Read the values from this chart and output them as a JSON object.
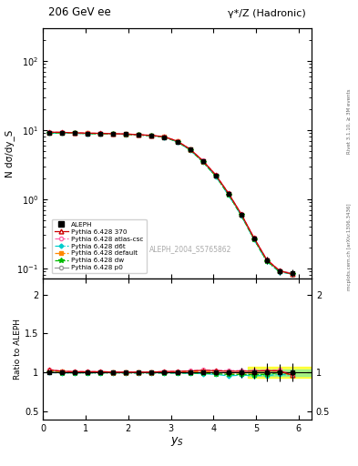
{
  "title_left": "206 GeV ee",
  "title_right": "γ*/Z (Hadronic)",
  "ylabel_main": "N dσ/dy_S",
  "ylabel_ratio": "Ratio to ALEPH",
  "xlabel": "y_S",
  "watermark": "ALEPH_2004_S5765862",
  "right_label_top": "Rivet 3.1.10, ≥ 3M events",
  "right_label_bottom": "mcplots.cern.ch [arXiv:1306.3436]",
  "xlim": [
    0,
    6.3
  ],
  "ylim_main": [
    0.07,
    300
  ],
  "ylim_ratio": [
    0.4,
    2.2
  ],
  "yticks_ratio": [
    0.5,
    1.0,
    1.5,
    2.0
  ],
  "x_data": [
    0.15,
    0.45,
    0.75,
    1.05,
    1.35,
    1.65,
    1.95,
    2.25,
    2.55,
    2.85,
    3.15,
    3.45,
    3.75,
    4.05,
    4.35,
    4.65,
    4.95,
    5.25,
    5.55,
    5.85
  ],
  "aleph_y": [
    9.0,
    9.1,
    9.0,
    8.9,
    8.85,
    8.8,
    8.7,
    8.5,
    8.3,
    7.9,
    6.8,
    5.2,
    3.5,
    2.2,
    1.2,
    0.6,
    0.27,
    0.13,
    0.09,
    0.085
  ],
  "aleph_yerr": [
    0.15,
    0.12,
    0.12,
    0.12,
    0.11,
    0.11,
    0.11,
    0.1,
    0.1,
    0.1,
    0.09,
    0.08,
    0.07,
    0.06,
    0.05,
    0.04,
    0.02,
    0.015,
    0.01,
    0.01
  ],
  "py370_y": [
    9.3,
    9.25,
    9.1,
    9.0,
    8.95,
    8.85,
    8.75,
    8.55,
    8.35,
    8.0,
    6.9,
    5.3,
    3.6,
    2.25,
    1.22,
    0.61,
    0.275,
    0.133,
    0.092,
    0.082
  ],
  "py_atlascsc_y": [
    9.35,
    9.28,
    9.12,
    9.02,
    8.97,
    8.87,
    8.77,
    8.57,
    8.37,
    8.02,
    6.92,
    5.32,
    3.62,
    2.27,
    1.23,
    0.615,
    0.277,
    0.134,
    0.093,
    0.083
  ],
  "py_d6t_y": [
    9.0,
    9.05,
    8.95,
    8.85,
    8.8,
    8.75,
    8.65,
    8.45,
    8.25,
    7.85,
    6.75,
    5.15,
    3.45,
    2.15,
    1.15,
    0.58,
    0.26,
    0.125,
    0.088,
    0.082
  ],
  "py_default_y": [
    9.2,
    9.2,
    9.05,
    8.95,
    8.9,
    8.8,
    8.7,
    8.5,
    8.3,
    7.95,
    6.85,
    5.25,
    3.55,
    2.2,
    1.19,
    0.595,
    0.268,
    0.13,
    0.09,
    0.082
  ],
  "py_dw_y": [
    9.05,
    9.08,
    8.97,
    8.87,
    8.82,
    8.77,
    8.67,
    8.47,
    8.27,
    7.87,
    6.77,
    5.17,
    3.47,
    2.17,
    1.17,
    0.585,
    0.263,
    0.127,
    0.09,
    0.083
  ],
  "py_p0_y": [
    9.1,
    9.1,
    9.0,
    8.9,
    8.85,
    8.8,
    8.7,
    8.5,
    8.3,
    7.9,
    6.8,
    5.2,
    3.5,
    2.2,
    1.2,
    0.6,
    0.27,
    0.13,
    0.09,
    0.085
  ],
  "band_yellow": [
    0.93,
    1.07
  ],
  "band_green": [
    0.96,
    1.04
  ],
  "band_yellow_xstart": 4.8,
  "band_green_xstart": 4.8,
  "colors": {
    "aleph": "#000000",
    "py370": "#cc0000",
    "atlascsc": "#ff66aa",
    "d6t": "#00cccc",
    "default": "#ff8800",
    "dw": "#00bb00",
    "p0": "#999999"
  }
}
